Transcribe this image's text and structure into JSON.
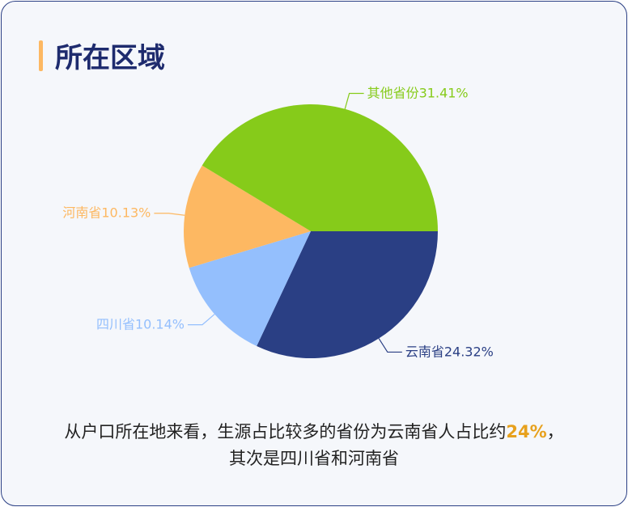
{
  "header": {
    "title": "所在区域"
  },
  "chart_data": {
    "type": "pie",
    "categories": [
      "云南省",
      "四川省",
      "河南省",
      "其他省份"
    ],
    "values": [
      24.32,
      10.14,
      10.13,
      31.41
    ],
    "value_labels": [
      "24.32%",
      "10.14%",
      "10.13%",
      "31.41%"
    ],
    "colors": [
      "#2a3f84",
      "#94bffd",
      "#fdb862",
      "#86cb1a"
    ]
  },
  "caption": {
    "line1_start": "从户口所在地来看，生源占比较多的省份为云南省人占比约",
    "highlight": "24%",
    "line1_end": "，",
    "line2": "其次是四川省和河南省"
  }
}
